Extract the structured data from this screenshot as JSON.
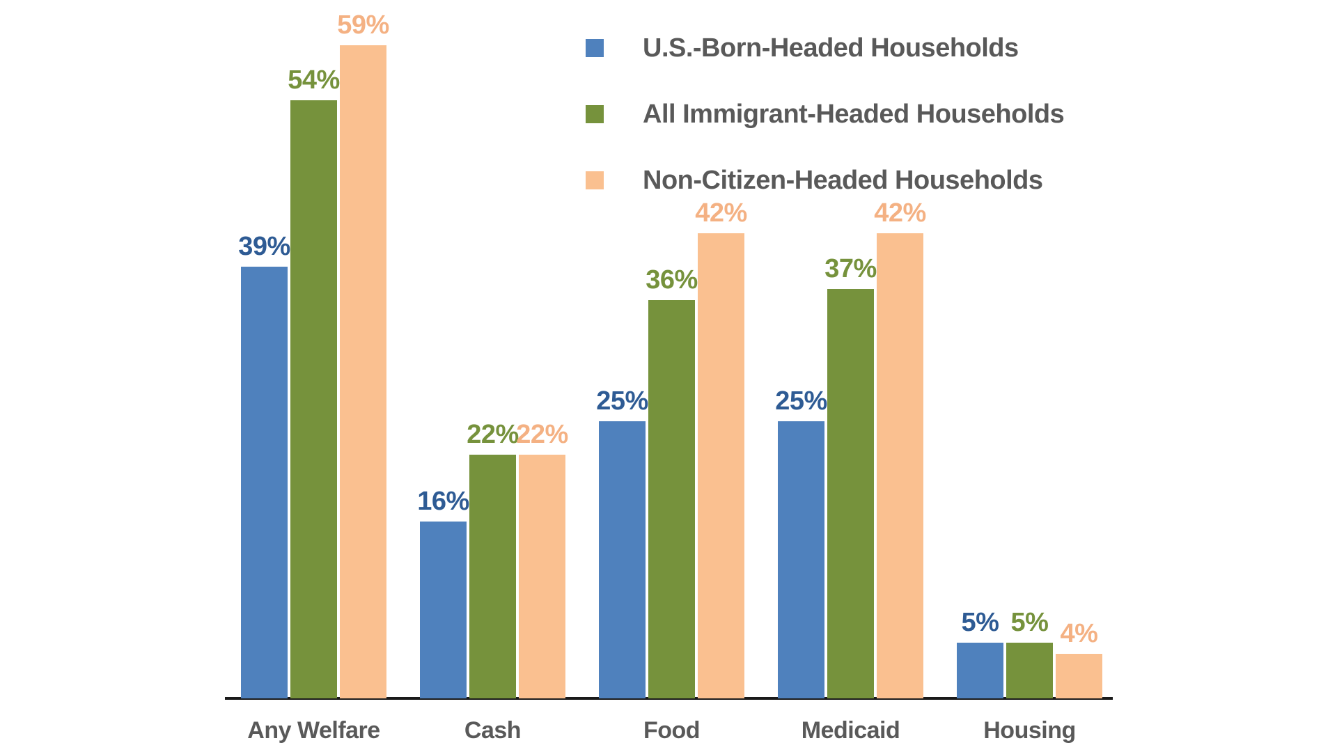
{
  "chart_data": {
    "type": "bar",
    "title": "",
    "xlabel": "",
    "ylabel": "",
    "categories": [
      "Any Welfare",
      "Cash",
      "Food",
      "Medicaid",
      "Housing"
    ],
    "series": [
      {
        "name": "U.S.-Born-Headed Households",
        "values": [
          39,
          16,
          25,
          25,
          5
        ],
        "bar_color": "#4F81BD",
        "label_color": "#2E5B94"
      },
      {
        "name": "All Immigrant-Headed Households",
        "values": [
          54,
          22,
          36,
          37,
          5
        ],
        "bar_color": "#76923C",
        "label_color": "#76923C"
      },
      {
        "name": "Non-Citizen-Headed Households",
        "values": [
          59,
          22,
          42,
          42,
          4
        ],
        "bar_color": "#FAC090",
        "label_color": "#F4B183"
      }
    ],
    "value_suffix": "%",
    "data_labels": [
      [
        "39%",
        "16%",
        "25%",
        "25%",
        "5%"
      ],
      [
        "54%",
        "22%",
        "36%",
        "37%",
        "5%"
      ],
      [
        "59%",
        "22%",
        "42%",
        "42%",
        "4%"
      ]
    ],
    "ylim": [
      0,
      62
    ],
    "grid": false,
    "y_axis_visible": false,
    "x_axis_line": true,
    "legend_position": "top-right",
    "category_label_color": "#595959",
    "legend_text_color": "#595959",
    "axis_line_color": "#1A1A1A",
    "background_color": "#FFFFFF"
  }
}
